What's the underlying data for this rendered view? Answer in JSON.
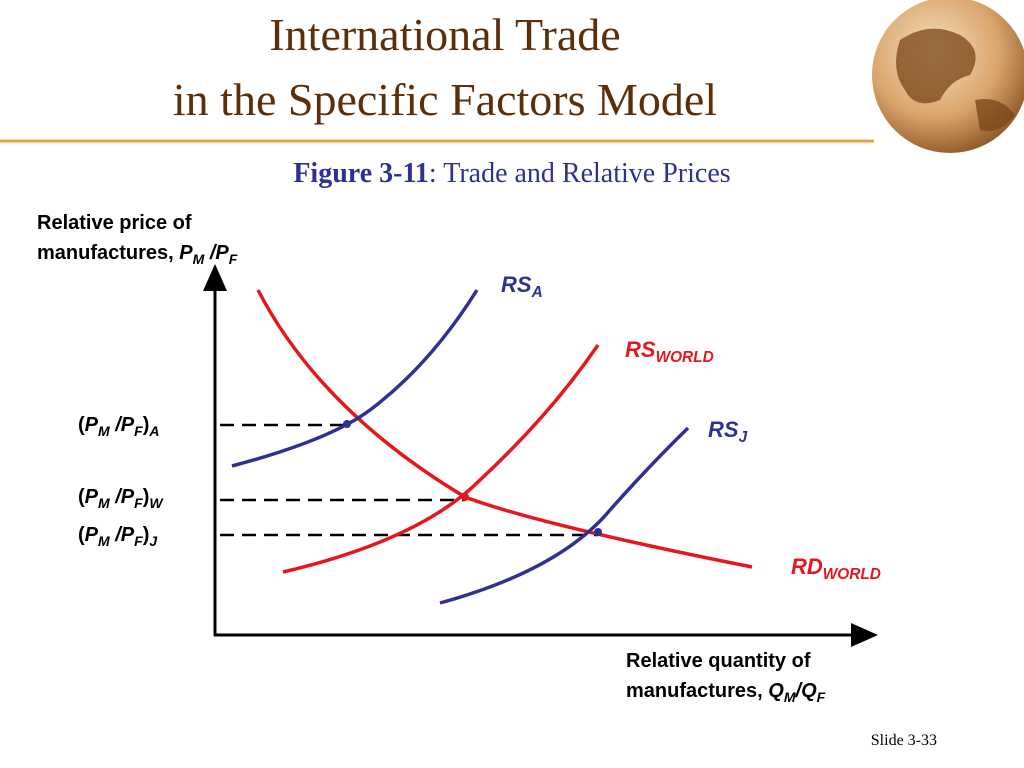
{
  "header": {
    "title_lines": [
      "International Trade",
      "in the Specific Factors Model"
    ]
  },
  "figure": {
    "label": "Figure 3-11",
    "caption": ": Trade and Relative Prices"
  },
  "y_axis_label": {
    "line1": "Relative price of",
    "line2": "manufactures,",
    "num": "P",
    "num_sub": "M",
    "den": " /P",
    "den_sub": "F"
  },
  "x_axis_label": {
    "line1": "Relative quantity of",
    "line2": "manufactures,",
    "num": "Q",
    "num_sub": "M",
    "den": "/Q",
    "den_sub": "F"
  },
  "price_labels": [
    {
      "open": "(",
      "num": "P",
      "num_sub": "M",
      "den": " /P",
      "den_sub": "F",
      "close": ")",
      "tag": "A"
    },
    {
      "open": "(",
      "num": "P",
      "num_sub": "M",
      "den": " /P",
      "den_sub": "F",
      "close": ")",
      "tag": "W"
    },
    {
      "open": "(",
      "num": "P",
      "num_sub": "M",
      "den": " /P",
      "den_sub": "F",
      "close": ")",
      "tag": "J"
    }
  ],
  "curve_labels": [
    {
      "main": "RS",
      "sub": "A"
    },
    {
      "main": "RS",
      "sub": "WORLD"
    },
    {
      "main": "RS",
      "sub": "J"
    },
    {
      "main": "RD",
      "sub": "WORLD"
    }
  ],
  "footer": {
    "slide": "Slide 3-33"
  }
}
